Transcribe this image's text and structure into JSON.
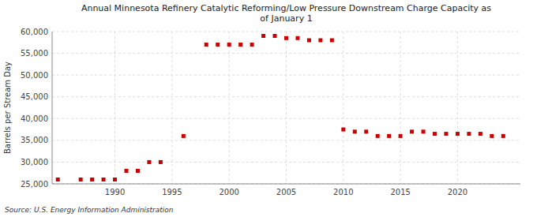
{
  "chart_data": {
    "type": "scatter",
    "title": "Annual Minnesota Refinery Catalytic Reforming/Low Pressure Downstream Charge Capacity as\nof January 1",
    "y_label": "Barrels per Stream Day",
    "source": "Source: U.S. Energy Information Administration",
    "color": "#cc0000",
    "marker": "square",
    "grid": true,
    "xlim": [
      1984.5,
      2025.5
    ],
    "xticks": [
      1990,
      1995,
      2000,
      2005,
      2010,
      2015,
      2020
    ],
    "ylim": [
      25000,
      60000
    ],
    "yticks": [
      {
        "value": 25000,
        "label": "25,000"
      },
      {
        "value": 30000,
        "label": "30,000"
      },
      {
        "value": 35000,
        "label": "35,000"
      },
      {
        "value": 40000,
        "label": "40,000"
      },
      {
        "value": 45000,
        "label": "45,000"
      },
      {
        "value": 50000,
        "label": "50,000"
      },
      {
        "value": 55000,
        "label": "55,000"
      },
      {
        "value": 60000,
        "label": "60,000"
      }
    ],
    "x": [
      1985,
      1987,
      1988,
      1989,
      1990,
      1991,
      1992,
      1993,
      1994,
      1996,
      1998,
      1999,
      2000,
      2001,
      2002,
      2003,
      2004,
      2005,
      2006,
      2007,
      2008,
      2009,
      2010,
      2011,
      2012,
      2013,
      2014,
      2015,
      2016,
      2017,
      2018,
      2019,
      2020,
      2021,
      2022,
      2023,
      2024
    ],
    "values": [
      26000,
      26000,
      26000,
      26000,
      26000,
      28000,
      28000,
      30000,
      30000,
      36000,
      57000,
      57000,
      57000,
      57000,
      57000,
      59000,
      59000,
      58500,
      58500,
      58000,
      58000,
      58000,
      37500,
      37000,
      37000,
      36000,
      36000,
      36000,
      37000,
      37000,
      36500,
      36500,
      36500,
      36500,
      36500,
      36000,
      36000
    ]
  }
}
